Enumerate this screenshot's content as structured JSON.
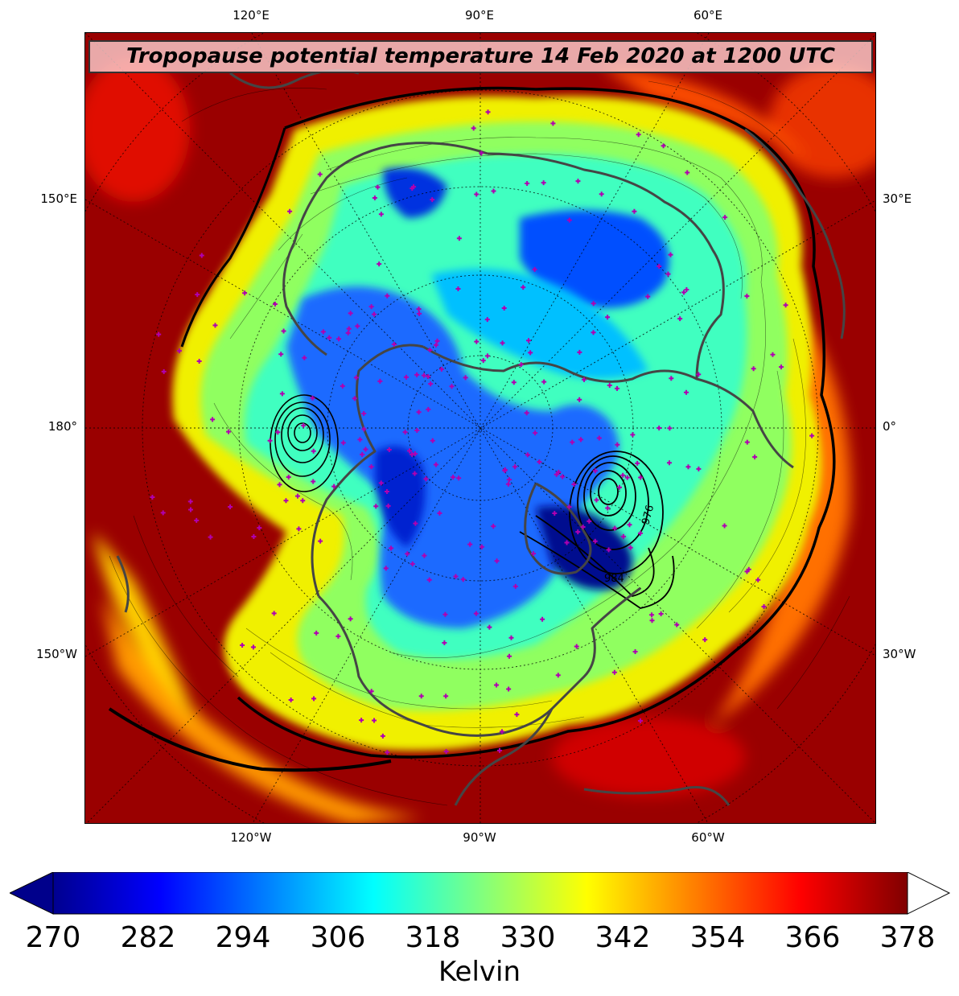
{
  "title": "Tropopause potential temperature 14 Feb 2020 at 1200 UTC",
  "longitude_labels": {
    "top": [
      "120°E",
      "90°E",
      "60°E"
    ],
    "left": [
      "150°E",
      "180°",
      "150°W"
    ],
    "right": [
      "30°E",
      "0°",
      "30°W"
    ],
    "bottom": [
      "120°W",
      "90°W",
      "60°W"
    ]
  },
  "map": {
    "projection": "polar stereographic (north pole)",
    "field": "tropopause potential temperature",
    "overlays": [
      "black isentrope contour lines",
      "bold black surface low pressure contours",
      "grey coastlines and borders",
      "magenta observation station markers",
      "dotted lat/lon graticule"
    ],
    "contour_labels": [
      "984",
      "976"
    ]
  },
  "colorbar": {
    "colormap": "jet",
    "min": 270,
    "max": 378,
    "extend": "both",
    "ticks": [
      "270",
      "282",
      "294",
      "306",
      "318",
      "330",
      "342",
      "354",
      "366",
      "378"
    ],
    "label": "Kelvin"
  },
  "colors": {
    "cold": "#00008b",
    "warm": "#800000",
    "station_marker": "#b000b0",
    "coastline": "#454545"
  }
}
